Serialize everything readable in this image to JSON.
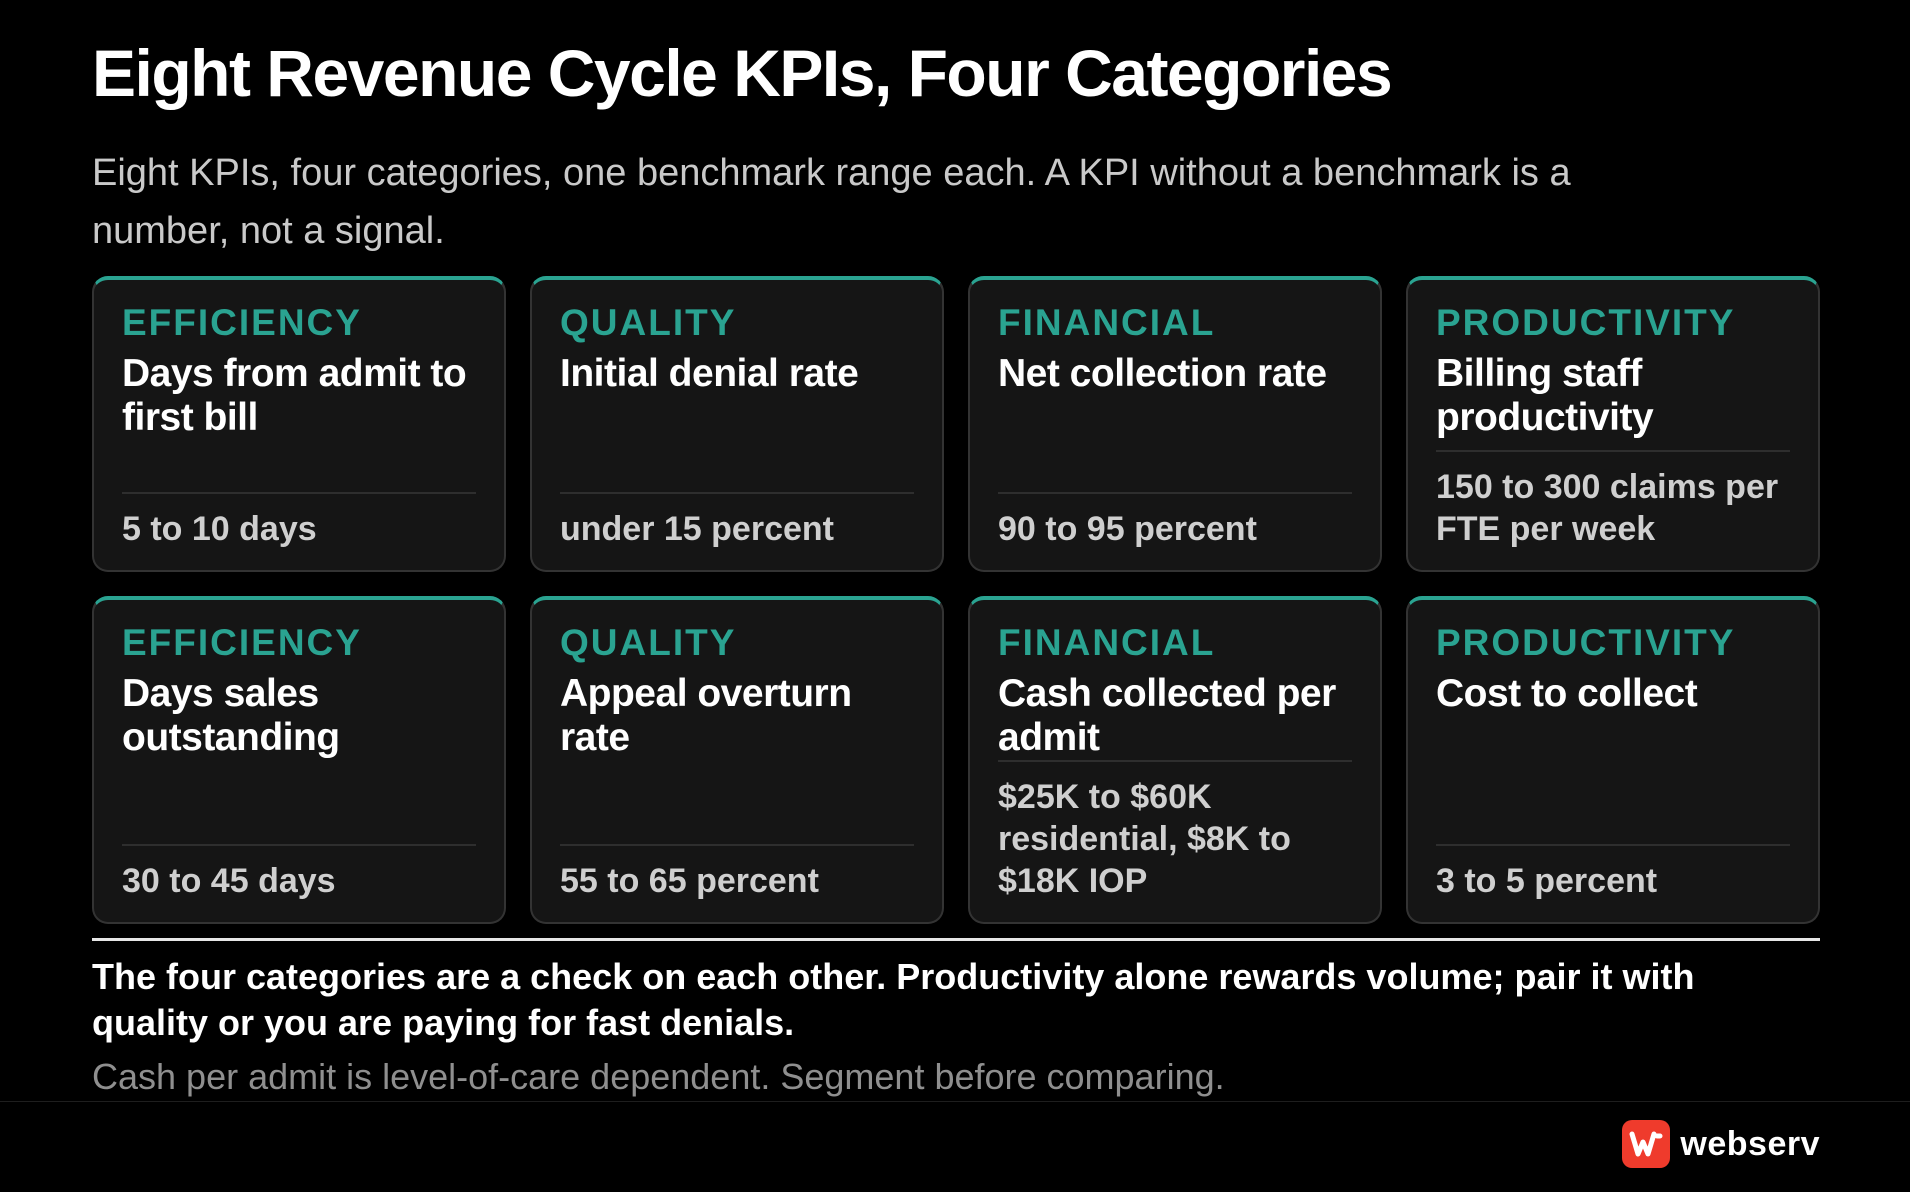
{
  "title": "Eight Revenue Cycle KPIs, Four Categories",
  "subtitle": "Eight KPIs, four categories, one benchmark range each. A KPI without a benchmark is a number, not a signal.",
  "colors": {
    "accent": "#2aa391",
    "background": "#000000",
    "card": "#151515",
    "logo": "#ef3b2c"
  },
  "cards": [
    {
      "category": "EFFICIENCY",
      "kpi": "Days from admit to first bill",
      "benchmark": "5 to 10 days"
    },
    {
      "category": "QUALITY",
      "kpi": "Initial denial rate",
      "benchmark": "under 15 percent"
    },
    {
      "category": "FINANCIAL",
      "kpi": "Net collection rate",
      "benchmark": "90 to 95 percent"
    },
    {
      "category": "PRODUCTIVITY",
      "kpi": "Billing staff productivity",
      "benchmark": "150 to 300 claims per FTE per week"
    },
    {
      "category": "EFFICIENCY",
      "kpi": "Days sales outstanding",
      "benchmark": "30 to 45 days"
    },
    {
      "category": "QUALITY",
      "kpi": "Appeal overturn rate",
      "benchmark": "55 to 65 percent"
    },
    {
      "category": "FINANCIAL",
      "kpi": "Cash collected per admit",
      "benchmark": "$25K to $60K residential, $8K to $18K IOP"
    },
    {
      "category": "PRODUCTIVITY",
      "kpi": "Cost to collect",
      "benchmark": "3 to 5 percent"
    }
  ],
  "takeaway": "The four categories are a check on each other. Productivity alone rewards volume; pair it with quality or you are paying for fast denials.",
  "note": "Cash per admit is level-of-care dependent. Segment before comparing.",
  "brand": {
    "name": "webserv",
    "icon": "webserv-logo-icon"
  }
}
